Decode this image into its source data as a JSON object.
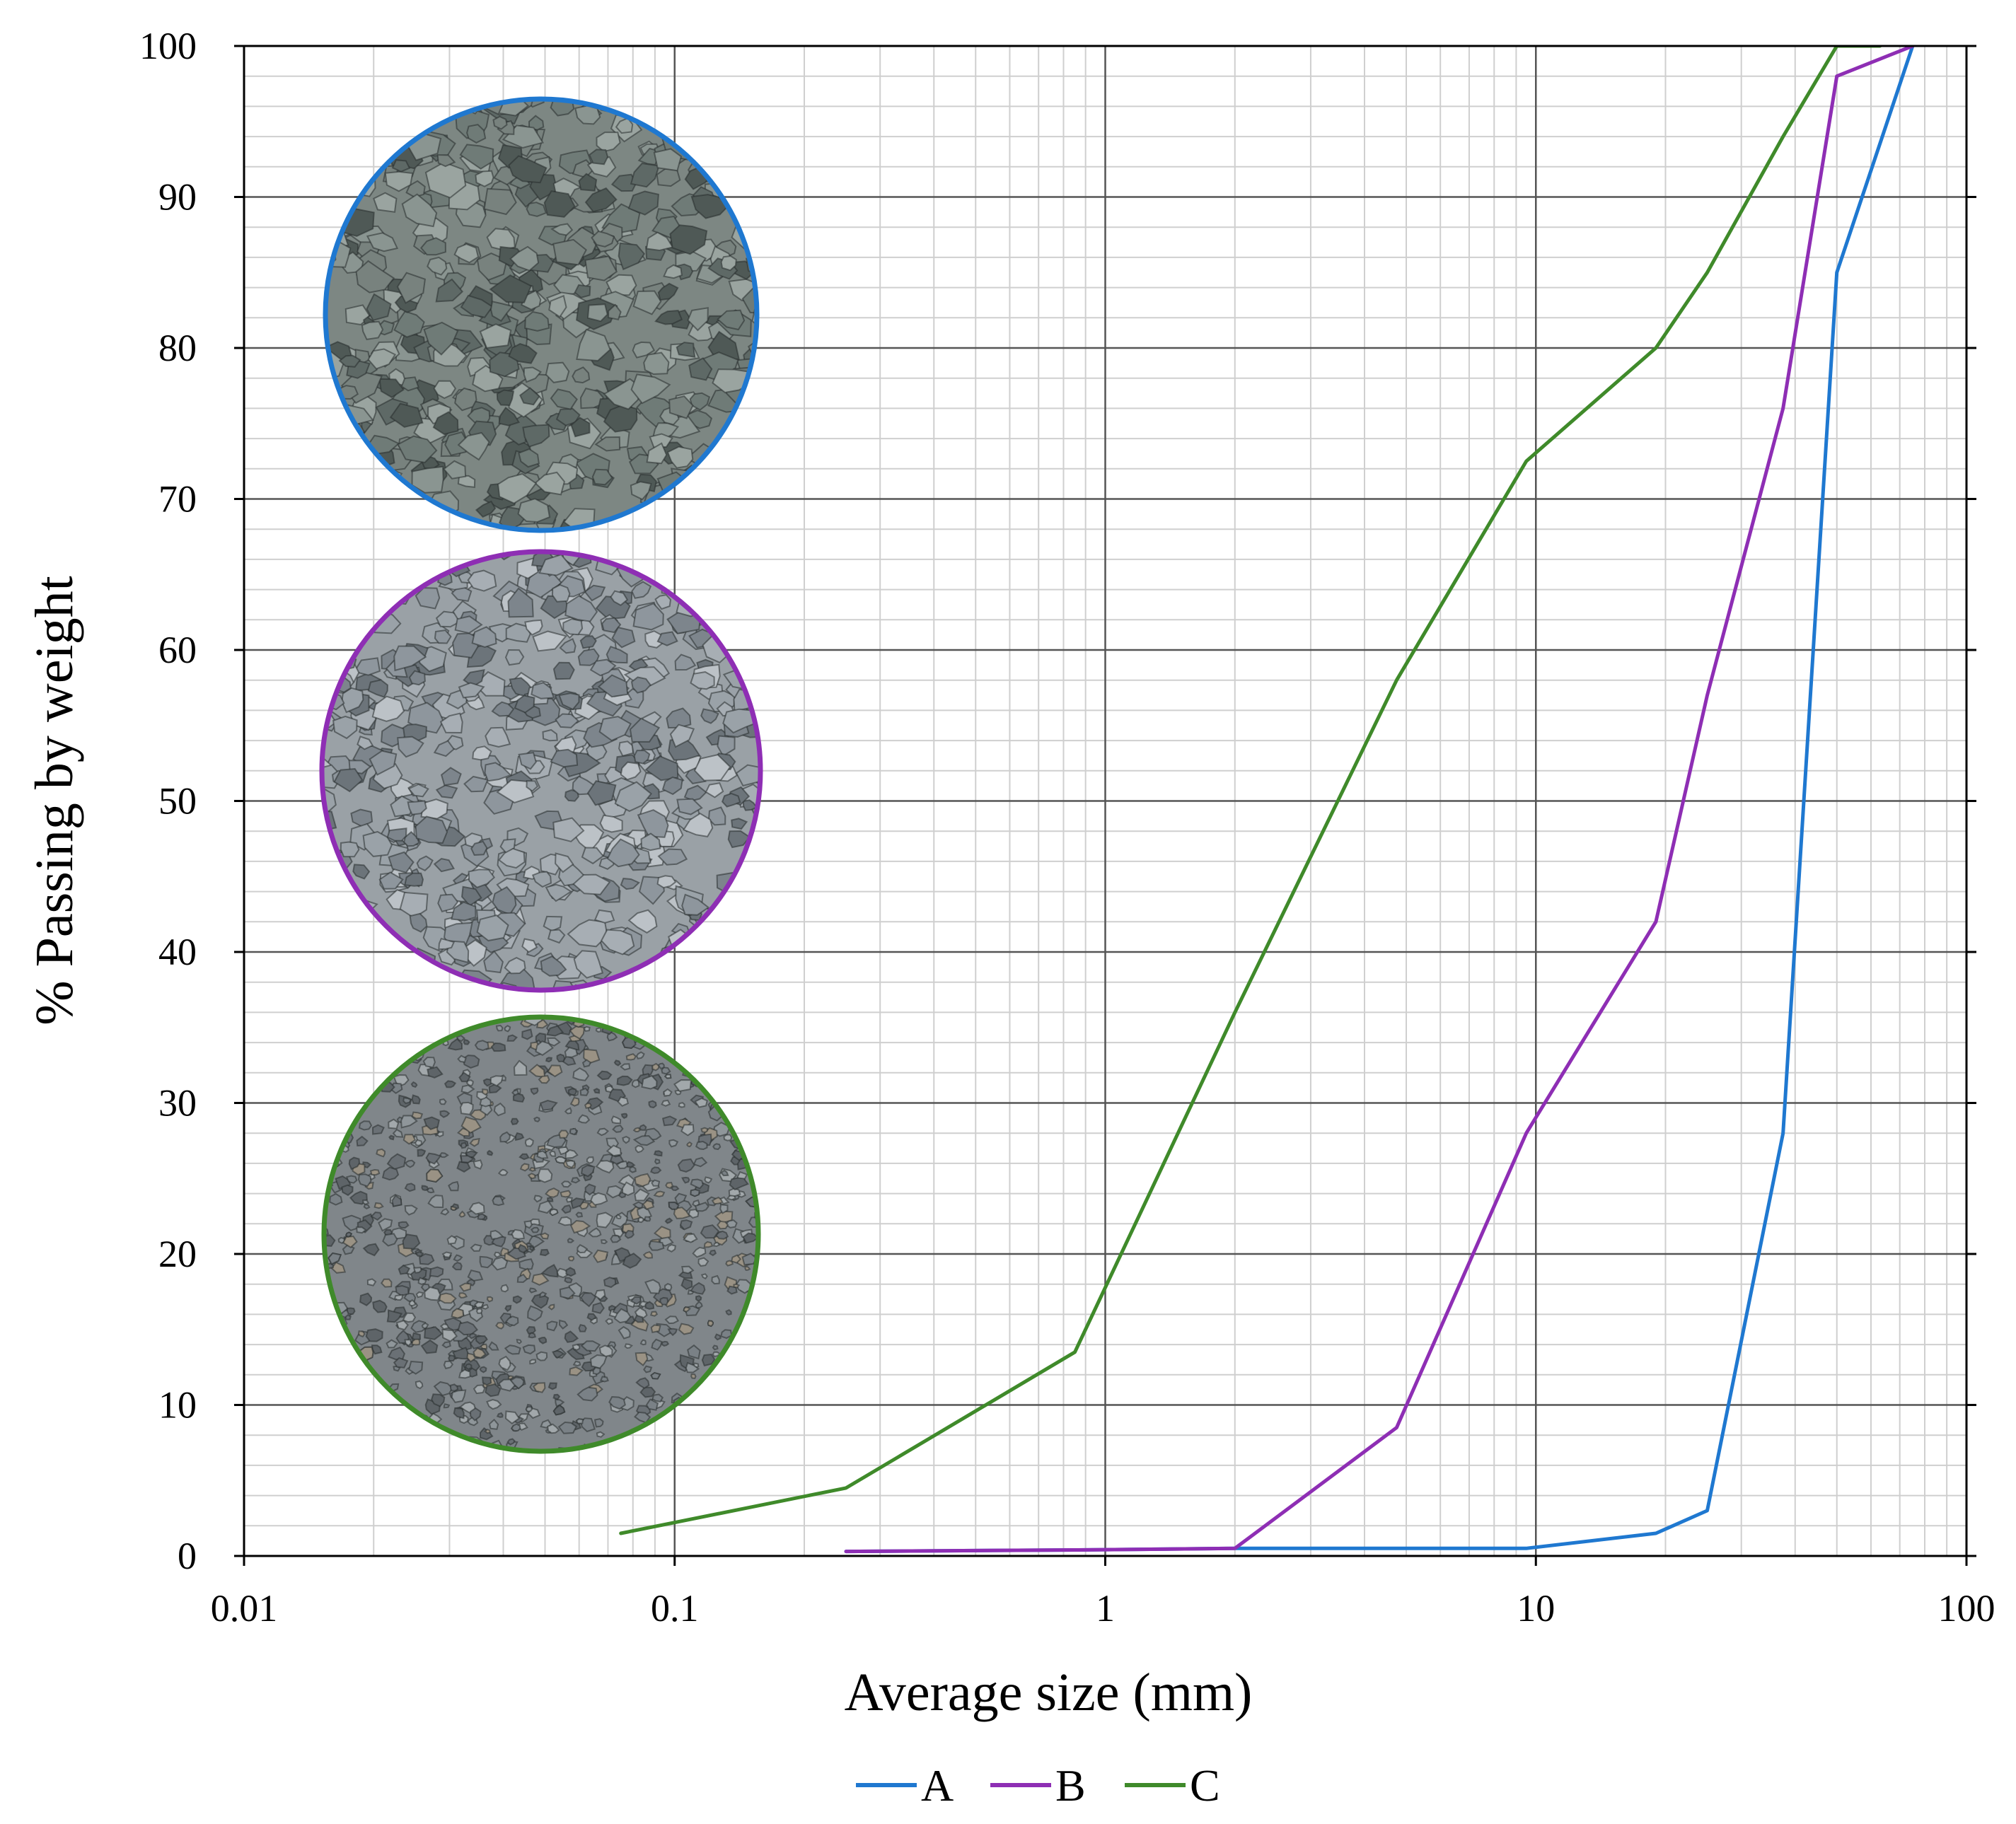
{
  "chart_data": {
    "type": "line",
    "title": "",
    "xlabel": "Average size (mm)",
    "ylabel": "% Passing by weight",
    "x_scale": "log",
    "xlim": [
      0.01,
      100
    ],
    "ylim": [
      0,
      100
    ],
    "x_ticks": [
      0.01,
      0.1,
      1,
      10,
      100
    ],
    "x_tick_labels": [
      "0.01",
      "0.1",
      "1",
      "10",
      "100"
    ],
    "y_ticks": [
      0,
      10,
      20,
      30,
      40,
      50,
      60,
      70,
      80,
      90,
      100
    ],
    "y_tick_labels": [
      "0",
      "10",
      "20",
      "30",
      "40",
      "50",
      "60",
      "70",
      "80",
      "90",
      "100"
    ],
    "grid": true,
    "legend": {
      "placement": "bottom-center"
    },
    "series": [
      {
        "name": "A",
        "color": "#1f78d0",
        "x": [
          0.25,
          0.85,
          2,
          4.75,
          9.5,
          19,
          25,
          37.5,
          50,
          75
        ],
        "y": [
          0.3,
          0.4,
          0.5,
          0.5,
          0.5,
          1.5,
          3,
          28,
          85,
          100
        ]
      },
      {
        "name": "B",
        "color": "#8e2eb4",
        "x": [
          0.25,
          0.85,
          2,
          4.75,
          9.5,
          19,
          25,
          37.5,
          50,
          75
        ],
        "y": [
          0.3,
          0.4,
          0.5,
          8.5,
          28,
          42,
          57,
          76,
          98,
          100
        ]
      },
      {
        "name": "C",
        "color": "#3f8a2a",
        "x": [
          0.075,
          0.25,
          0.85,
          2,
          4.75,
          9.5,
          19,
          25,
          37.5,
          50,
          63
        ],
        "y": [
          1.5,
          4.5,
          13.5,
          36,
          58,
          72.5,
          80,
          85,
          94,
          100,
          100
        ]
      }
    ],
    "sample_photos": [
      {
        "series": "A",
        "color": "#1f78d0",
        "texture": "coarse-crushed-stone"
      },
      {
        "series": "B",
        "color": "#8e2eb4",
        "texture": "medium-crushed-stone"
      },
      {
        "series": "C",
        "color": "#3f8a2a",
        "texture": "fine-graded-gravel"
      }
    ]
  }
}
